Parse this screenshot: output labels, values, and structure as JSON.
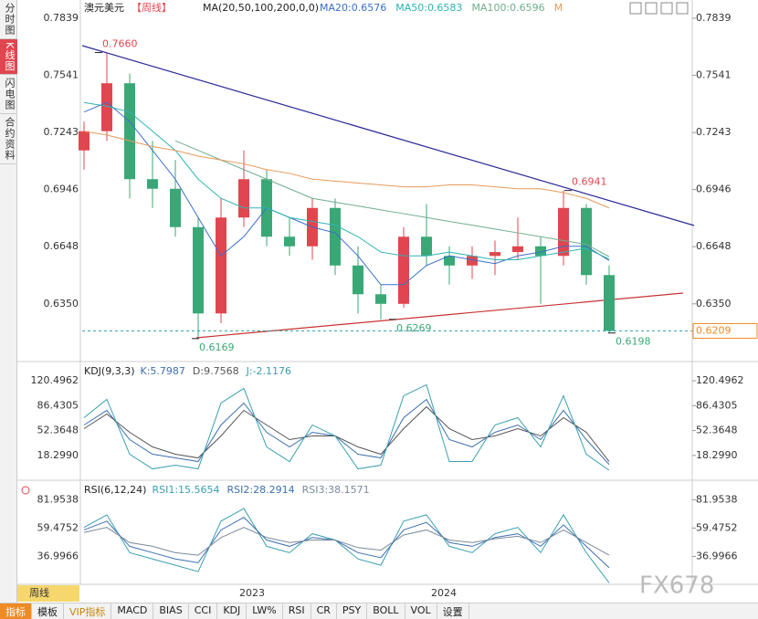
{
  "sidebar": [
    "分时图",
    "K线图",
    "闪电图",
    "合约资料"
  ],
  "header": {
    "symbol": "澳元美元",
    "period": "【周线】",
    "ma_spec": "MA(20,50,100,200,0,0)",
    "ma_items": [
      "MA20:0.6576",
      "MA50:0.6583",
      "MA100:0.6596",
      "M"
    ]
  },
  "chart_data": [
    {
      "type": "candlestick",
      "ylim": [
        0.6054,
        0.7934
      ],
      "yticks": [
        0.7839,
        0.7541,
        0.7243,
        0.6946,
        0.6648,
        {
          "value": 0.635,
          "label": "0.6350"
        }
      ],
      "open": [
        0.715,
        0.725,
        0.75,
        0.7,
        0.695,
        0.675,
        0.63,
        0.68,
        0.7,
        0.67,
        0.665,
        0.685,
        0.655,
        0.64,
        0.635,
        0.67,
        0.66,
        0.655,
        0.66,
        0.662,
        0.665,
        0.66,
        0.685,
        0.65
      ],
      "high": [
        0.73,
        0.766,
        0.755,
        0.72,
        0.71,
        0.68,
        0.69,
        0.715,
        0.705,
        0.68,
        0.69,
        0.69,
        0.665,
        0.645,
        0.675,
        0.687,
        0.665,
        0.665,
        0.668,
        0.68,
        0.67,
        0.6941,
        0.687,
        0.655
      ],
      "low": [
        0.705,
        0.72,
        0.69,
        0.685,
        0.67,
        0.6169,
        0.625,
        0.675,
        0.665,
        0.66,
        0.658,
        0.65,
        0.63,
        0.6269,
        0.633,
        0.655,
        0.645,
        0.648,
        0.65,
        0.658,
        0.635,
        0.655,
        0.645,
        0.6198
      ],
      "close": [
        0.725,
        0.75,
        0.7,
        0.695,
        0.675,
        0.63,
        0.68,
        0.7,
        0.67,
        0.665,
        0.685,
        0.655,
        0.64,
        0.635,
        0.67,
        0.66,
        0.655,
        0.66,
        0.662,
        0.665,
        0.66,
        0.685,
        0.65,
        0.6209
      ],
      "up_color": "#e0464f",
      "down_color": "#3aa876",
      "series": [
        {
          "color": "#3a6fc8",
          "values": [
            0.735,
            0.74,
            0.73,
            0.715,
            0.7,
            0.68,
            0.66,
            0.67,
            0.685,
            0.68,
            0.675,
            0.672,
            0.66,
            0.645,
            0.645,
            0.655,
            0.66,
            0.658,
            0.656,
            0.66,
            0.662,
            0.665,
            0.665,
            0.6576
          ]
        },
        {
          "color": "#2fb3b3",
          "values": [
            0.74,
            0.738,
            0.735,
            0.725,
            0.715,
            0.7,
            0.69,
            0.685,
            0.685,
            0.68,
            0.678,
            0.676,
            0.67,
            0.662,
            0.66,
            0.66,
            0.662,
            0.66,
            0.658,
            0.658,
            0.66,
            0.662,
            0.664,
            0.6583
          ]
        },
        {
          "color": "#6fae8e",
          "values": [
            null,
            null,
            null,
            null,
            0.72,
            0.715,
            0.71,
            0.705,
            0.7,
            0.695,
            0.69,
            0.688,
            0.686,
            0.684,
            0.682,
            0.68,
            0.678,
            0.676,
            0.674,
            0.672,
            0.67,
            0.668,
            0.666,
            0.6596
          ]
        },
        {
          "color": "#e59a5c",
          "values": [
            0.725,
            0.723,
            0.72,
            0.717,
            0.715,
            0.712,
            0.71,
            0.708,
            0.705,
            0.703,
            0.7,
            0.699,
            0.698,
            0.697,
            0.696,
            0.696,
            0.697,
            0.697,
            0.696,
            0.695,
            0.695,
            0.693,
            0.69,
            0.685
          ]
        }
      ],
      "annotations": [
        {
          "value": 0.766,
          "label": "0.7660"
        },
        {
          "value": 0.6941,
          "label": "0.6941"
        },
        {
          "value": 0.6169,
          "label": "0.6169"
        },
        {
          "value": 0.6269,
          "label": "0.6269"
        },
        {
          "value": 0.6198,
          "label": "0.6198"
        }
      ],
      "last_price": 0.6209
    },
    {
      "type": "line",
      "title": "KDJ(9,3,3)",
      "legend": [
        "K:5.7987",
        "D:9.7568",
        "J:-2.1176"
      ],
      "ylim": [
        -14.3,
        145.5
      ],
      "yticks": [
        120.4962,
        86.4305,
        52.3648,
        {
          "value": 18.299,
          "label": "18.2990"
        }
      ],
      "series": [
        {
          "color": "#3d6fb0",
          "values": [
            60,
            80,
            40,
            20,
            15,
            10,
            60,
            90,
            50,
            30,
            50,
            45,
            20,
            15,
            70,
            95,
            40,
            30,
            50,
            60,
            40,
            80,
            40,
            6
          ]
        },
        {
          "color": "#555555",
          "values": [
            55,
            75,
            50,
            30,
            20,
            15,
            45,
            80,
            60,
            40,
            45,
            45,
            30,
            20,
            55,
            85,
            55,
            40,
            45,
            55,
            45,
            70,
            50,
            10
          ]
        },
        {
          "color": "#3aa0b0",
          "values": [
            70,
            95,
            20,
            0,
            5,
            0,
            90,
            110,
            30,
            10,
            60,
            45,
            0,
            5,
            100,
            115,
            10,
            10,
            60,
            70,
            30,
            100,
            20,
            -2
          ]
        }
      ]
    },
    {
      "type": "line",
      "title": "RSI(6,12,24)",
      "legend": [
        "RSI1:15.5654",
        "RSI2:28.2914",
        "RSI3:38.1571"
      ],
      "ylim": [
        14.9,
        96.7
      ],
      "yticks": [
        81.9538,
        59.4752,
        36.9966
      ],
      "series": [
        {
          "color": "#3aa0b0",
          "values": [
            60,
            70,
            40,
            35,
            30,
            25,
            65,
            75,
            45,
            40,
            55,
            50,
            35,
            30,
            65,
            70,
            45,
            40,
            55,
            60,
            40,
            70,
            40,
            16
          ]
        },
        {
          "color": "#3d6fb0",
          "values": [
            58,
            65,
            45,
            40,
            35,
            32,
            58,
            68,
            50,
            45,
            52,
            50,
            40,
            36,
            58,
            64,
            48,
            45,
            52,
            55,
            45,
            62,
            45,
            28
          ]
        },
        {
          "color": "#7a8a9a",
          "values": [
            56,
            60,
            48,
            45,
            40,
            38,
            52,
            60,
            52,
            48,
            50,
            50,
            44,
            42,
            54,
            58,
            50,
            48,
            51,
            53,
            48,
            58,
            48,
            38
          ]
        }
      ]
    }
  ],
  "x_axis": {
    "period": "周线",
    "labels": [
      "2023",
      "2024"
    ]
  },
  "tabs": [
    "指标",
    "模板",
    "VIP指标",
    "MACD",
    "BIAS",
    "CCI",
    "KDJ",
    "LW%",
    "RSI",
    "CR",
    "PSY",
    "BOLL",
    "VOL",
    "设置"
  ],
  "watermark": "FX678"
}
